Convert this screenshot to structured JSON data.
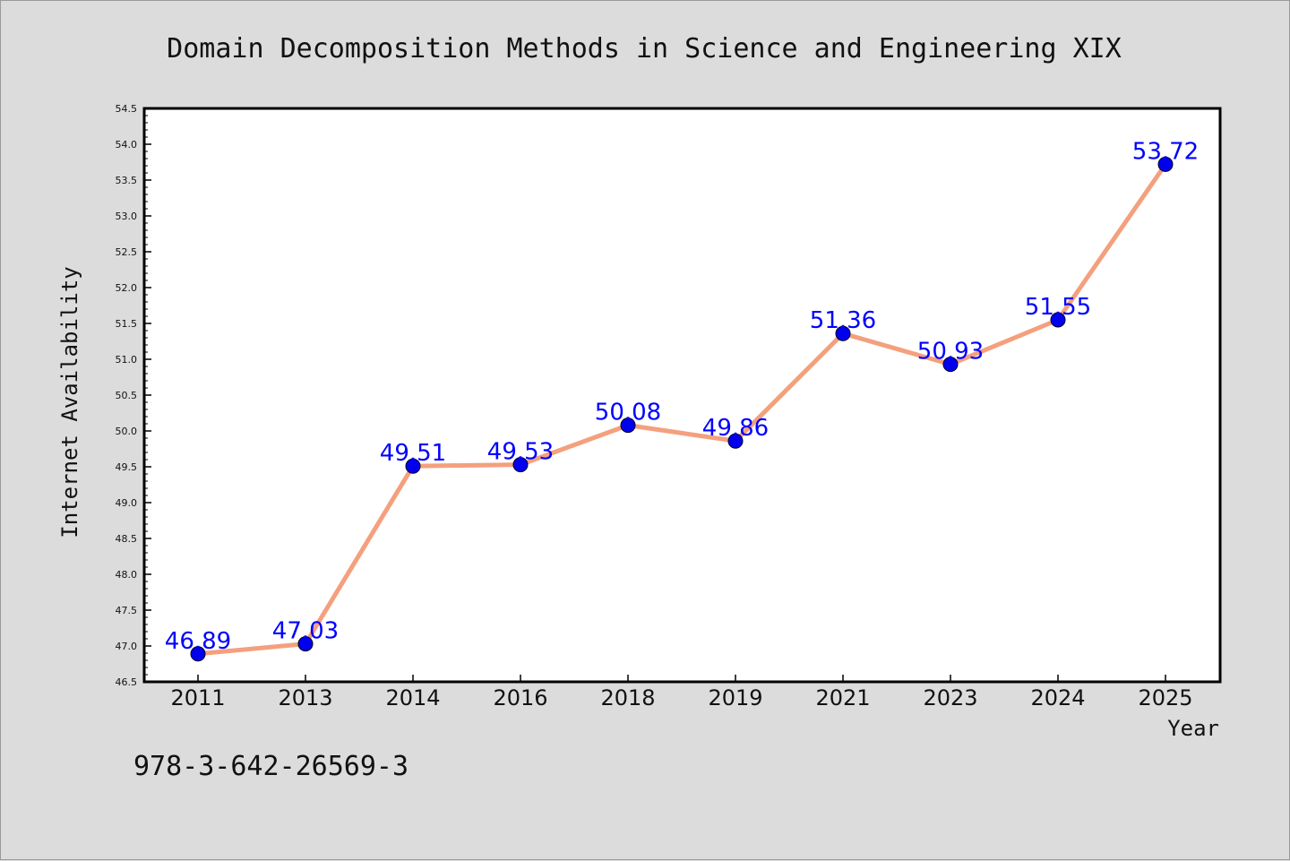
{
  "chart_data": {
    "type": "line",
    "title": "Domain Decomposition Methods in Science and Engineering XIX",
    "xlabel": "Year",
    "ylabel": "Internet Availability",
    "categories": [
      "2011",
      "2013",
      "2014",
      "2016",
      "2018",
      "2019",
      "2021",
      "2023",
      "2024",
      "2025"
    ],
    "series": [
      {
        "values": [
          46.89,
          47.03,
          49.51,
          49.53,
          50.08,
          49.86,
          51.36,
          50.93,
          51.55,
          53.72
        ],
        "data_labels": [
          "46.89",
          "47.03",
          "49.51",
          "49.53",
          "50.08",
          "49.86",
          "51.36",
          "50.93",
          "51.55",
          "53.72"
        ],
        "line_color": "#f4a07e",
        "marker_color": "#0000ee",
        "label_color": "#0000ff"
      }
    ],
    "ylim": [
      46.5,
      54.5
    ],
    "yticks": [
      "46.5",
      "47.0",
      "47.5",
      "48.0",
      "48.5",
      "49.0",
      "49.5",
      "50.0",
      "50.5",
      "51.0",
      "51.5",
      "52.0",
      "52.5",
      "53.0",
      "53.5",
      "54.0",
      "54.5"
    ],
    "grid": false,
    "legend": "none",
    "background_color": "#dcdcdc",
    "plot_background_color": "#ffffff"
  },
  "footer": {
    "text": "978-3-642-26569-3"
  }
}
